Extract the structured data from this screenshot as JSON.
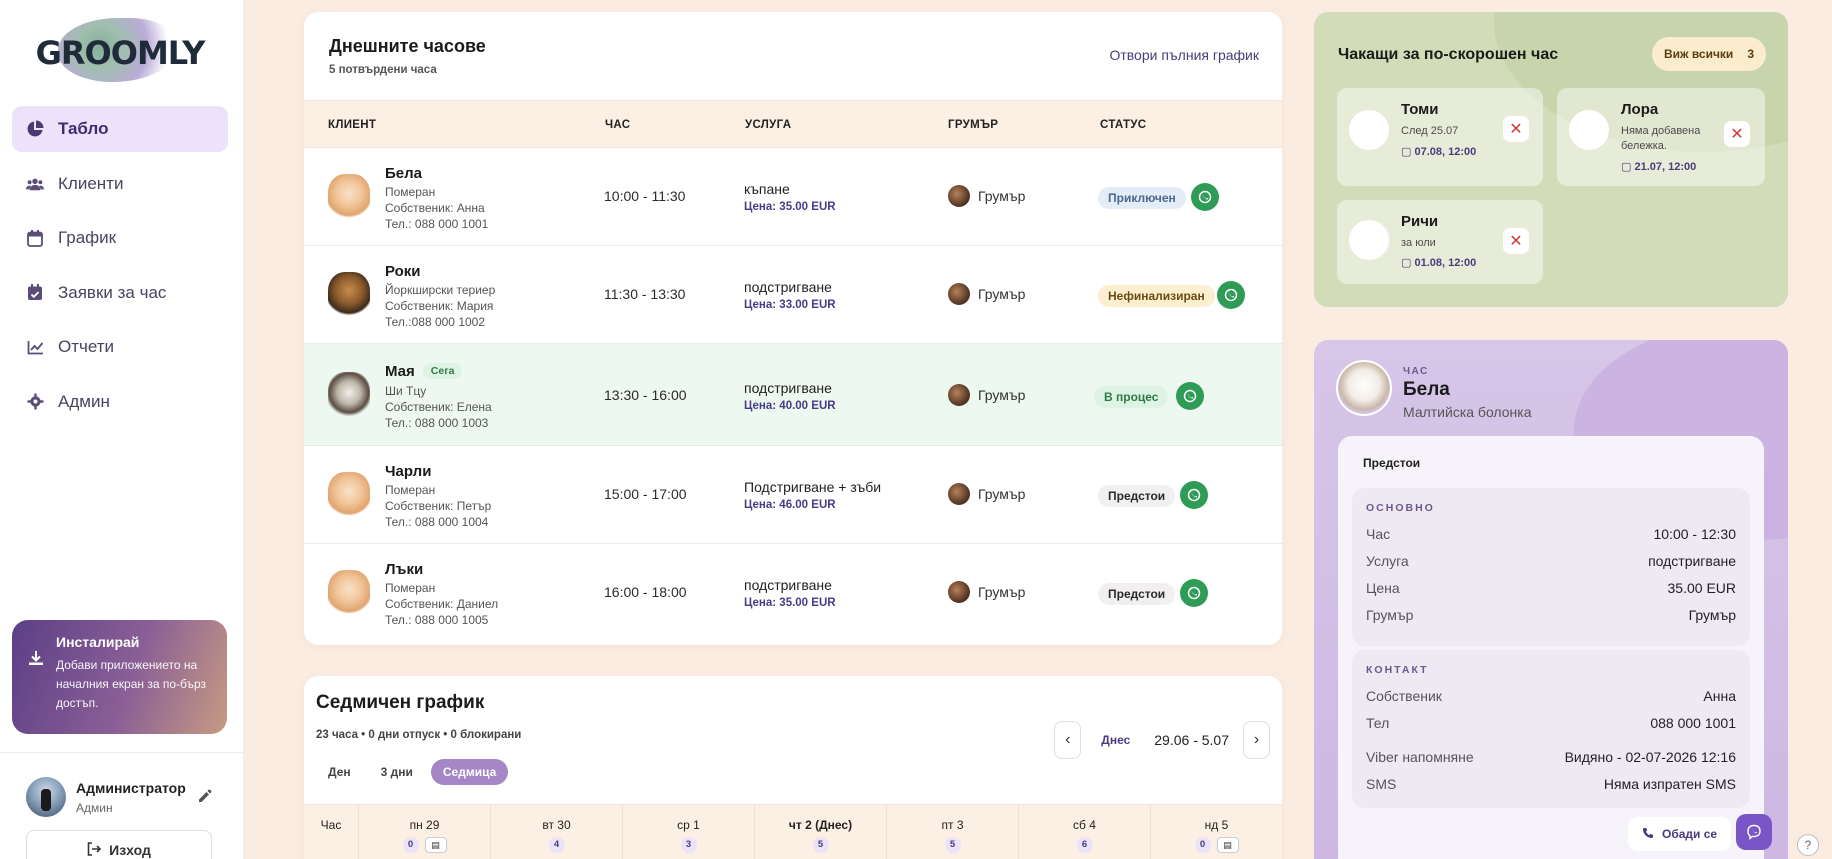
{
  "brand": {
    "logo_text": "GROOMLY"
  },
  "sidebar": {
    "items": [
      {
        "label": "Табло",
        "icon": "pie-chart-icon",
        "active": true
      },
      {
        "label": "Клиенти",
        "icon": "users-icon"
      },
      {
        "label": "График",
        "icon": "calendar-icon"
      },
      {
        "label": "Заявки за час",
        "icon": "calendar-check-icon"
      },
      {
        "label": "Отчети",
        "icon": "line-chart-icon"
      },
      {
        "label": "Админ",
        "icon": "gear-icon"
      }
    ],
    "install": {
      "title": "Инсталирай",
      "desc": "Добави приложението на началния екран за по-бърз достъп."
    },
    "user": {
      "name": "Администратор",
      "role": "Админ"
    },
    "logout_label": "Изход"
  },
  "today": {
    "title": "Днешните часове",
    "subtitle": "5 потвърдени часа",
    "open_link": "Отвори пълния график",
    "columns": [
      "КЛИЕНТ",
      "ЧАС",
      "УСЛУГА",
      "ГРУМЪР",
      "СТАТУС"
    ],
    "rows": [
      {
        "name": "Бела",
        "breed": "Померан",
        "owner": "Собственик: Анна",
        "phone": "Тел.: 088 000 1001",
        "time": "10:00 - 11:30",
        "service": "къпане",
        "price": "Цена: 35.00 EUR",
        "groomer": "Грумър",
        "status": "Приключен",
        "status_kind": "done",
        "badge": ""
      },
      {
        "name": "Роки",
        "breed": "Йоркширски териер",
        "owner": "Собственик: Мария",
        "phone": "Тел.:088 000 1002",
        "time": "11:30 - 13:30",
        "service": "подстригване",
        "price": "Цена: 33.00 EUR",
        "groomer": "Грумър",
        "status": "Нефинализиран",
        "status_kind": "unfinalized",
        "badge": ""
      },
      {
        "name": "Мая",
        "breed": "Ши Тцу",
        "owner": "Собственик: Елена",
        "phone": "Тел.: 088 000 1003",
        "time": "13:30 - 16:00",
        "service": "подстригване",
        "price": "Цена: 40.00 EUR",
        "groomer": "Грумър",
        "status": "В процес",
        "status_kind": "in-progress",
        "badge": "Сега"
      },
      {
        "name": "Чарли",
        "breed": "Померан",
        "owner": "Собственик: Петър",
        "phone": "Тел.: 088 000 1004",
        "time": "15:00 - 17:00",
        "service": "Подстригване + зъби",
        "price": "Цена: 46.00 EUR",
        "groomer": "Грумър",
        "status": "Предстои",
        "status_kind": "upcoming",
        "badge": ""
      },
      {
        "name": "Лъки",
        "breed": "Померан",
        "owner": "Собственик: Даниел",
        "phone": "Тел.: 088 000 1005",
        "time": "16:00 - 18:00",
        "service": "подстригване",
        "price": "Цена: 35.00 EUR",
        "groomer": "Грумър",
        "status": "Предстои",
        "status_kind": "upcoming",
        "badge": ""
      }
    ]
  },
  "weekly": {
    "title": "Седмичен график",
    "summary": "23 часа • 0 дни отпуск • 0 блокирани",
    "views": [
      "Ден",
      "3 дни",
      "Седмица"
    ],
    "active_view": "Седмица",
    "today_label": "Днес",
    "range": "29.06 - 5.07",
    "hour_label": "Час",
    "days": [
      {
        "label": "пн 29",
        "count": "0",
        "has_cal": true
      },
      {
        "label": "вт 30",
        "count": "4",
        "has_cal": false
      },
      {
        "label": "ср 1",
        "count": "3",
        "has_cal": false
      },
      {
        "label": "чт 2 (Днес)",
        "count": "5",
        "has_cal": false,
        "today": true
      },
      {
        "label": "пт 3",
        "count": "5",
        "has_cal": false
      },
      {
        "label": "сб 4",
        "count": "6",
        "has_cal": false
      },
      {
        "label": "нд 5",
        "count": "0",
        "has_cal": true
      }
    ]
  },
  "waiting": {
    "title": "Чакащи за по-скорошен час",
    "view_all": "Виж всички",
    "count": "3",
    "items": [
      {
        "name": "Томи",
        "note": "След 25.07",
        "date": "07.08, 12:00"
      },
      {
        "name": "Лора",
        "note": "Няма добавена бележка.",
        "date": "21.07, 12:00"
      },
      {
        "name": "Ричи",
        "note": "за юли",
        "date": "01.08, 12:00"
      }
    ]
  },
  "detail": {
    "label": "ЧАС",
    "name": "Бела",
    "breed": "Малтийска болонка",
    "status": "Предстои",
    "basic_heading": "ОСНОВНО",
    "basic": [
      {
        "k": "Час",
        "v": "10:00 - 12:30"
      },
      {
        "k": "Услуга",
        "v": "подстригване"
      },
      {
        "k": "Цена",
        "v": "35.00 EUR"
      },
      {
        "k": "Грумър",
        "v": "Грумър"
      }
    ],
    "contact_heading": "КОНТАКТ",
    "contact": [
      {
        "k": "Собственик",
        "v": "Анна"
      },
      {
        "k": "Тел",
        "v": "088 000 1001"
      },
      {
        "k": "Viber напомняне",
        "v": "Видяно - 02-07-2026 12:16"
      },
      {
        "k": "SMS",
        "v": "Няма изпратен SMS"
      }
    ],
    "call_label": "Обади се"
  },
  "colors": {
    "accent": "#4b3b7d",
    "whatsapp": "#2e9b57",
    "page_bg": "#fbece2"
  }
}
